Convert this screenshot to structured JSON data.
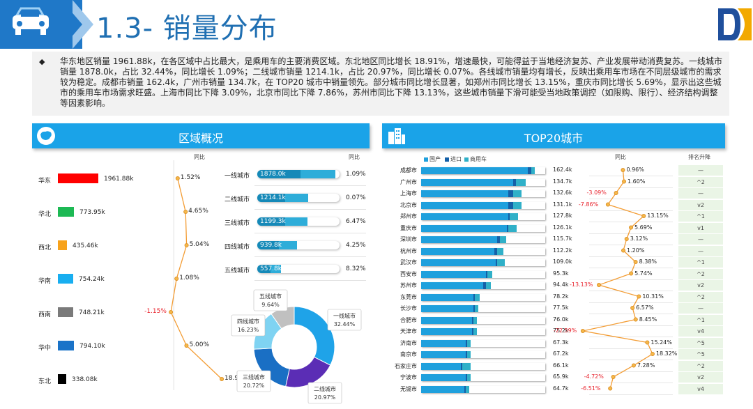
{
  "header": {
    "title": "1.3- 销量分布"
  },
  "summary": {
    "bullet": "◆",
    "text": "华东地区销量 1961.88k，在各区域中占比最大，是乘用车的主要消费区域。东北地区同比增长 18.91%，增速最快，可能得益于当地经济复苏、产业发展带动消费复苏。一线城市销量 1878.0k，占比 32.44%，同比增长 1.09%；二线城市销量 1214.1k，占比 20.97%，同比增长 0.07%。各线城市销量均有增长，反映出乘用车市场在不同层级城市的需求较为稳定。成都市销量 162.4k，广州市销量 134.7k，在 TOP20 城市中销量领先。部分城市同比增长显著，如郑州市同比增长 13.15%，重庆市同比增长 5.69%，显示出这些城市的乘用车市场需求旺盛。上海市同比下降 3.09%，北京市同比下降 7.86%，苏州市同比下降 13.13%，这些城市销量下滑可能受当地政策调控（如限购、限行）、经济结构调整等因素影响。"
  },
  "region_panel": {
    "title": "区域概况",
    "yoy_header": "同比",
    "regions": [
      {
        "name": "华东",
        "value": "1961.88k",
        "yoy": "1.52%",
        "color": "#ff0000",
        "share": 1.0
      },
      {
        "name": "华北",
        "value": "773.95k",
        "yoy": "4.65%",
        "color": "#1db954",
        "share": 0.394
      },
      {
        "name": "西北",
        "value": "435.46k",
        "yoy": "5.04%",
        "color": "#f7a21b",
        "share": 0.222
      },
      {
        "name": "华南",
        "value": "754.24k",
        "yoy": "1.08%",
        "color": "#18aef0",
        "share": 0.384
      },
      {
        "name": "西南",
        "value": "748.21k",
        "yoy": "-1.15%",
        "color": "#7a7a7a",
        "share": 0.381
      },
      {
        "name": "华中",
        "value": "794.10k",
        "yoy": "5.00%",
        "color": "#1a73c8",
        "share": 0.405
      },
      {
        "name": "东北",
        "value": "338.08k",
        "yoy": "18.91%",
        "color": "#000000",
        "share": 0.172
      }
    ]
  },
  "tier_block": {
    "yoy_header": "同比",
    "tiers": [
      {
        "name": "一线城市",
        "value": "1878.0k",
        "yoy": "1.09%",
        "fill": 0.95
      },
      {
        "name": "二线城市",
        "value": "1214.1k",
        "yoy": "0.07%",
        "fill": 0.62
      },
      {
        "name": "三线城市",
        "value": "1199.3k",
        "yoy": "6.47%",
        "fill": 0.61
      },
      {
        "name": "四线城市",
        "value": "939.8k",
        "yoy": "4.25%",
        "fill": 0.48
      },
      {
        "name": "五线城市",
        "value": "557.8k",
        "yoy": "8.32%",
        "fill": 0.29
      }
    ]
  },
  "donut": {
    "slices": [
      {
        "name": "一线城市",
        "pct": "32.44%",
        "value": 32.44,
        "color": "#1fa3e8"
      },
      {
        "name": "二线城市",
        "pct": "20.97%",
        "value": 20.97,
        "color": "#5b2db5"
      },
      {
        "name": "三线城市",
        "pct": "20.72%",
        "value": 20.72,
        "color": "#1a6fc4"
      },
      {
        "name": "四线城市",
        "pct": "16.23%",
        "value": 16.23,
        "color": "#7fd3f2"
      },
      {
        "name": "五线城市",
        "pct": "9.64%",
        "value": 9.64,
        "color": "#c0c0c0"
      }
    ]
  },
  "top20_panel": {
    "title": "TOP20城市",
    "legend": [
      {
        "label": "国产",
        "color": "#1fa0dd"
      },
      {
        "label": "进口",
        "color": "#1460a8"
      },
      {
        "label": "商用车",
        "color": "#30b0c8"
      }
    ],
    "yoy_header": "同比",
    "rank_header": "排名升降",
    "cities": [
      {
        "name": "成都市",
        "value": "162.4k",
        "yoy": "0.96%",
        "rank": "—",
        "a": 0.86,
        "b": 0.03,
        "c": 0.03,
        "yoyv": 0.96
      },
      {
        "name": "广州市",
        "value": "134.7k",
        "yoy": "1.60%",
        "rank": "^2",
        "a": 0.74,
        "b": 0.02,
        "c": 0.08,
        "yoyv": 1.6
      },
      {
        "name": "上海市",
        "value": "132.6k",
        "yoy": "-3.09%",
        "rank": "—",
        "a": 0.7,
        "b": 0.04,
        "c": 0.07,
        "yoyv": -3.09
      },
      {
        "name": "北京市",
        "value": "131.1k",
        "yoy": "-7.86%",
        "rank": "v2",
        "a": 0.7,
        "b": 0.04,
        "c": 0.07,
        "yoyv": -7.86
      },
      {
        "name": "郑州市",
        "value": "127.8k",
        "yoy": "13.15%",
        "rank": "^1",
        "a": 0.7,
        "b": 0.01,
        "c": 0.07,
        "yoyv": 13.15
      },
      {
        "name": "重庆市",
        "value": "126.1k",
        "yoy": "5.69%",
        "rank": "v1",
        "a": 0.69,
        "b": 0.01,
        "c": 0.07,
        "yoyv": 5.69
      },
      {
        "name": "深圳市",
        "value": "115.7k",
        "yoy": "3.12%",
        "rank": "—",
        "a": 0.61,
        "b": 0.02,
        "c": 0.05,
        "yoyv": 3.12
      },
      {
        "name": "杭州市",
        "value": "112.2k",
        "yoy": "1.20%",
        "rank": "—",
        "a": 0.59,
        "b": 0.02,
        "c": 0.05,
        "yoyv": 1.2
      },
      {
        "name": "武汉市",
        "value": "109.0k",
        "yoy": "8.38%",
        "rank": "^1",
        "a": 0.6,
        "b": 0.01,
        "c": 0.06,
        "yoyv": 8.38
      },
      {
        "name": "西安市",
        "value": "95.3k",
        "yoy": "5.74%",
        "rank": "^2",
        "a": 0.52,
        "b": 0.01,
        "c": 0.04,
        "yoyv": 5.74
      },
      {
        "name": "苏州市",
        "value": "94.4k",
        "yoy": "-13.13%",
        "rank": "v2",
        "a": 0.5,
        "b": 0.02,
        "c": 0.04,
        "yoyv": -13.13
      },
      {
        "name": "东莞市",
        "value": "78.2k",
        "yoy": "10.31%",
        "rank": "^2",
        "a": 0.42,
        "b": 0.01,
        "c": 0.04,
        "yoyv": 10.31
      },
      {
        "name": "长沙市",
        "value": "77.5k",
        "yoy": "6.57%",
        "rank": "—",
        "a": 0.42,
        "b": 0.01,
        "c": 0.03,
        "yoyv": 6.57
      },
      {
        "name": "合肥市",
        "value": "76.0k",
        "yoy": "8.45%",
        "rank": "^1",
        "a": 0.41,
        "b": 0.01,
        "c": 0.03,
        "yoyv": 8.45
      },
      {
        "name": "天津市",
        "value": "75.2k",
        "yoy": "-22.59%",
        "rank": "v4",
        "a": 0.41,
        "b": 0.01,
        "c": 0.03,
        "yoyv": -22.59
      },
      {
        "name": "济南市",
        "value": "67.3k",
        "yoy": "15.24%",
        "rank": "^5",
        "a": 0.36,
        "b": 0.01,
        "c": 0.03,
        "yoyv": 15.24
      },
      {
        "name": "南京市",
        "value": "67.2k",
        "yoy": "18.32%",
        "rank": "^5",
        "a": 0.36,
        "b": 0.01,
        "c": 0.03,
        "yoyv": 18.32
      },
      {
        "name": "石家庄市",
        "value": "66.1k",
        "yoy": "7.28%",
        "rank": "^2",
        "a": 0.32,
        "b": 0.01,
        "c": 0.07,
        "yoyv": 7.28
      },
      {
        "name": "宁波市",
        "value": "65.9k",
        "yoy": "-4.72%",
        "rank": "v2",
        "a": 0.36,
        "b": 0.01,
        "c": 0.03,
        "yoyv": -4.72
      },
      {
        "name": "无锡市",
        "value": "64.7k",
        "yoy": "-6.51%",
        "rank": "v4",
        "a": 0.35,
        "b": 0.01,
        "c": 0.03,
        "yoyv": -6.51
      }
    ]
  }
}
